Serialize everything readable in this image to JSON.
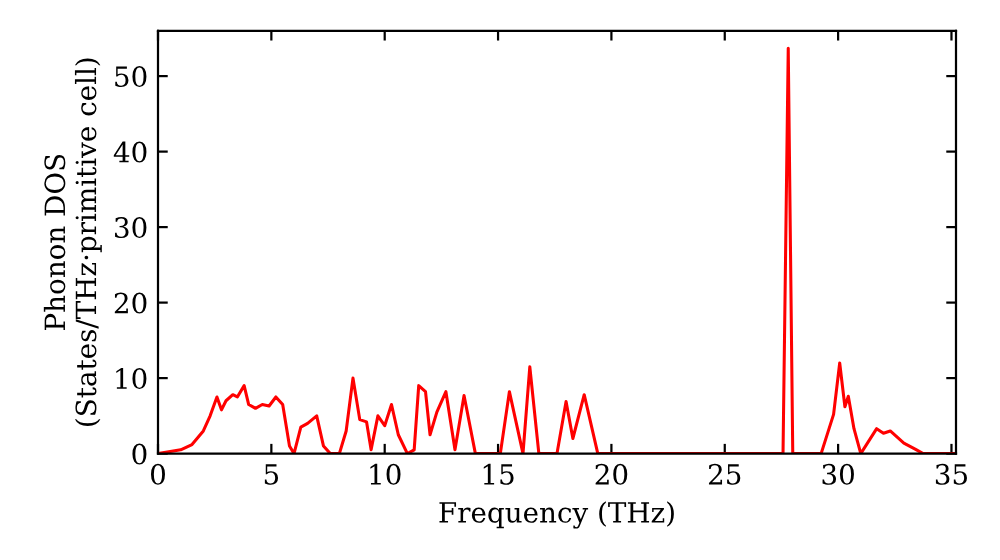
{
  "chart_data": {
    "type": "line",
    "xlabel": "Frequency (THz)",
    "ylabel": "Phonon DOS\n(States/THz·primitive cell)",
    "xlim": [
      0,
      35.2
    ],
    "ylim": [
      0,
      56
    ],
    "xticks": [
      0,
      5,
      10,
      15,
      20,
      25,
      30,
      35
    ],
    "yticks": [
      0,
      10,
      20,
      30,
      40,
      50
    ],
    "grid": false,
    "legend": false,
    "marker": "none",
    "line_style": "solid",
    "series": [
      {
        "color": "#ff0000",
        "x": [
          0,
          1,
          1.5,
          2,
          2.3,
          2.6,
          2.8,
          3.0,
          3.3,
          3.5,
          3.8,
          4.0,
          4.3,
          4.6,
          4.9,
          5.2,
          5.5,
          5.8,
          6.0,
          6.3,
          6.6,
          7.0,
          7.3,
          7.6,
          8.0,
          8.3,
          8.6,
          8.9,
          9.2,
          9.4,
          9.7,
          10.0,
          10.3,
          10.6,
          11.0,
          11.3,
          11.5,
          11.8,
          12.0,
          12.3,
          12.7,
          13.1,
          13.5,
          14.0,
          15.1,
          15.5,
          16.1,
          16.4,
          16.8,
          17.6,
          18.0,
          18.3,
          18.8,
          19.4,
          27.3,
          27.57,
          27.8,
          28.0,
          29.25,
          29.8,
          30.07,
          30.3,
          30.45,
          30.7,
          31.0,
          31.7,
          32.0,
          32.3,
          32.9,
          33.4,
          33.75,
          35.2
        ],
        "values": [
          0,
          0.5,
          1.2,
          3,
          5,
          7.5,
          5.8,
          7,
          7.8,
          7.5,
          9,
          6.5,
          6,
          6.5,
          6.3,
          7.5,
          6.5,
          1,
          0,
          3.5,
          4,
          5,
          1,
          0,
          0,
          3,
          10,
          4.5,
          4.2,
          0.5,
          5,
          3.7,
          6.5,
          2.5,
          0,
          0.5,
          9,
          8.2,
          2.5,
          5.5,
          8.2,
          0.5,
          7.7,
          0,
          0,
          8.2,
          0,
          11.5,
          0,
          0,
          6.9,
          2,
          7.8,
          0,
          0,
          0,
          53.7,
          0,
          0,
          5.2,
          12,
          6.2,
          7.6,
          3.3,
          0,
          3.3,
          2.7,
          3.0,
          1.4,
          0.6,
          0,
          0
        ]
      }
    ]
  }
}
